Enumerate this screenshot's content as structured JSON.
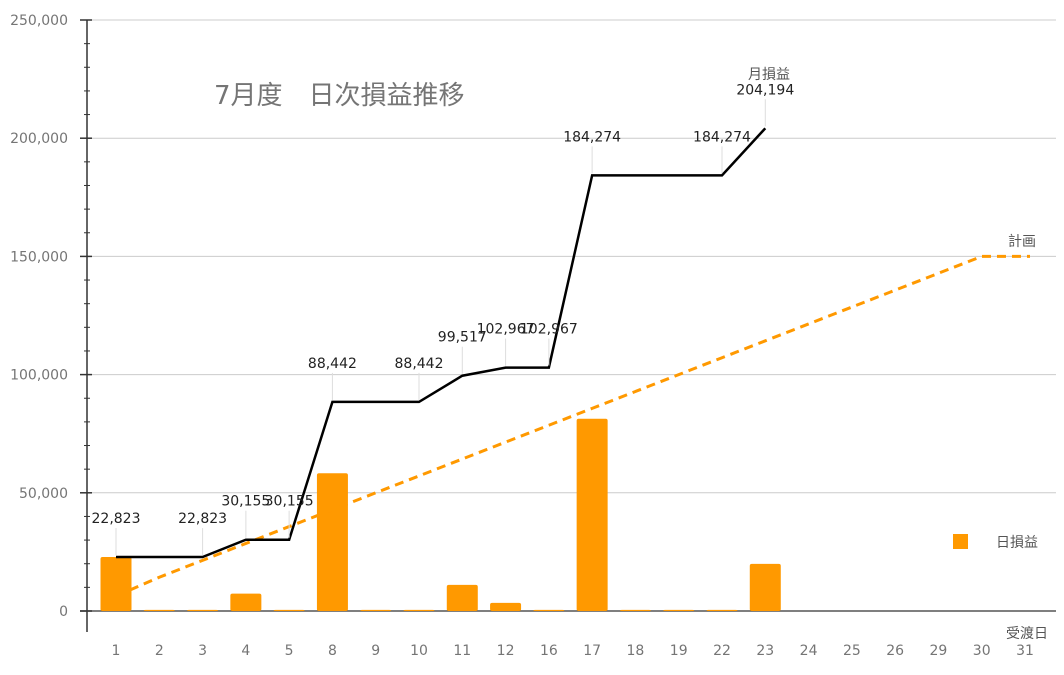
{
  "chart_data": {
    "type": "bar",
    "title": "7月度　日次損益推移",
    "xlabel": "受渡日",
    "ylabel": "",
    "ylim": [
      0,
      250000
    ],
    "yticks": [
      "0",
      "50,000",
      "100,000",
      "150,000",
      "200,000",
      "250,000"
    ],
    "grid": true,
    "legend_position": "right",
    "categories": [
      "1",
      "2",
      "3",
      "4",
      "5",
      "8",
      "9",
      "10",
      "11",
      "12",
      "16",
      "17",
      "18",
      "19",
      "22",
      "23",
      "24",
      "25",
      "26",
      "29",
      "30",
      "31"
    ],
    "series": [
      {
        "name": "日損益",
        "type": "bar",
        "color": "#FF9900",
        "values": [
          22823,
          500,
          500,
          7332,
          500,
          58287,
          500,
          500,
          11075,
          3450,
          500,
          81307,
          500,
          500,
          500,
          19920,
          null,
          null,
          null,
          null,
          null,
          null
        ]
      },
      {
        "name": "月損益",
        "type": "line",
        "color": "#000000",
        "values": [
          22823,
          22823,
          22823,
          30155,
          30155,
          88442,
          88442,
          88442,
          99517,
          102967,
          102967,
          184274,
          184274,
          184274,
          184274,
          204194,
          null,
          null,
          null,
          null,
          null,
          null
        ],
        "labels": [
          "22,823",
          "",
          "22,823",
          "30,155",
          "30,155",
          "88,442",
          "",
          "88,442",
          "99,517",
          "102,967",
          "102,967",
          "184,274",
          "",
          "",
          "184,274",
          "204,194",
          "",
          "",
          "",
          "",
          "",
          ""
        ]
      },
      {
        "name": "計画",
        "type": "line",
        "style": "dashed",
        "color": "#FF9900",
        "values": [
          7143,
          14286,
          21429,
          28571,
          35714,
          42857,
          50000,
          57143,
          64286,
          71429,
          78571,
          85714,
          92857,
          100000,
          107143,
          114286,
          121429,
          128571,
          135714,
          142857,
          150000,
          150000
        ]
      }
    ]
  }
}
